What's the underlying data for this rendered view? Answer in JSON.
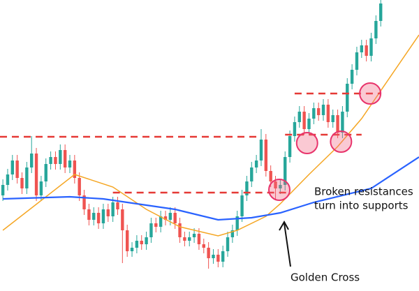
{
  "chart_data": {
    "type": "candlestick",
    "open": [
      137,
      152,
      167,
      187,
      162,
      147,
      177,
      197,
      137,
      157,
      182,
      192,
      182,
      202,
      177,
      187,
      162,
      137,
      117,
      102,
      112,
      97,
      117,
      107,
      127,
      117,
      87,
      57,
      62,
      72,
      67,
      77,
      97,
      92,
      107,
      102,
      112,
      97,
      77,
      72,
      77,
      82,
      67,
      62,
      47,
      52,
      42,
      57,
      77,
      87,
      107,
      137,
      157,
      177,
      187,
      217,
      172,
      157,
      147,
      152,
      192,
      222,
      242,
      257,
      232,
      247,
      262,
      252,
      267,
      242,
      252,
      227,
      257,
      297,
      317,
      342,
      352,
      337,
      362,
      387
    ],
    "high": [
      160,
      175,
      195,
      195,
      170,
      185,
      222,
      205,
      165,
      190,
      200,
      200,
      210,
      210,
      195,
      195,
      170,
      145,
      125,
      120,
      120,
      125,
      125,
      135,
      135,
      125,
      95,
      70,
      80,
      80,
      85,
      105,
      105,
      115,
      115,
      120,
      120,
      105,
      85,
      85,
      90,
      90,
      75,
      70,
      60,
      60,
      65,
      85,
      95,
      115,
      145,
      165,
      185,
      195,
      232,
      225,
      180,
      165,
      160,
      200,
      230,
      250,
      265,
      265,
      255,
      270,
      270,
      275,
      275,
      260,
      260,
      265,
      305,
      325,
      350,
      360,
      360,
      370,
      395,
      417
    ],
    "low": [
      129,
      144,
      159,
      154,
      139,
      139,
      169,
      129,
      129,
      149,
      174,
      174,
      174,
      169,
      169,
      154,
      129,
      109,
      94,
      94,
      89,
      89,
      99,
      99,
      109,
      40,
      49,
      49,
      54,
      59,
      59,
      69,
      84,
      84,
      94,
      94,
      89,
      69,
      64,
      64,
      69,
      59,
      54,
      32,
      39,
      34,
      34,
      49,
      69,
      79,
      99,
      129,
      149,
      169,
      179,
      164,
      149,
      130,
      139,
      144,
      184,
      214,
      234,
      224,
      224,
      239,
      244,
      244,
      234,
      234,
      219,
      219,
      249,
      289,
      309,
      334,
      329,
      329,
      354,
      379
    ],
    "close": [
      152,
      167,
      187,
      162,
      147,
      177,
      197,
      137,
      157,
      182,
      192,
      182,
      202,
      177,
      187,
      162,
      137,
      117,
      102,
      112,
      97,
      117,
      107,
      127,
      117,
      87,
      57,
      62,
      72,
      67,
      77,
      97,
      92,
      107,
      102,
      112,
      97,
      77,
      72,
      77,
      82,
      67,
      62,
      47,
      52,
      42,
      57,
      77,
      87,
      107,
      137,
      157,
      177,
      187,
      217,
      172,
      157,
      147,
      152,
      192,
      222,
      242,
      257,
      232,
      247,
      262,
      252,
      267,
      242,
      252,
      227,
      257,
      297,
      317,
      342,
      352,
      337,
      362,
      387,
      412
    ],
    "up_color": "#26a69a",
    "down_color": "#ef5350",
    "xlim": [
      -0.6,
      87
    ],
    "ylim": [
      0,
      417
    ],
    "lines": [
      {
        "color": "#f5a623",
        "x": [
          0,
          15,
          23,
          30,
          37,
          45,
          49,
          55,
          58,
          64,
          70,
          75,
          79,
          87
        ],
        "values": [
          87,
          167,
          149,
          117,
          92,
          79,
          87,
          107,
          125,
          167,
          207,
          247,
          287,
          367
        ]
      },
      {
        "color": "#2962ff",
        "x": [
          0,
          14,
          21,
          36,
          45,
          52,
          58,
          65,
          77,
          87
        ],
        "values": [
          132,
          135,
          132,
          117,
          102,
          105,
          112,
          127,
          147,
          192
        ]
      }
    ],
    "levels": [
      {
        "value": 221,
        "from": -0.6,
        "to": 54
      },
      {
        "value": 141,
        "from": 23,
        "to": 60
      },
      {
        "value": 283,
        "from": 61,
        "to": 79
      },
      {
        "value": 224,
        "from": 59,
        "to": 75
      }
    ],
    "highlights": [
      {
        "x": 57.8,
        "value": 145
      },
      {
        "x": 63.6,
        "value": 212
      },
      {
        "x": 70.7,
        "value": 214
      },
      {
        "x": 76.8,
        "value": 283
      }
    ],
    "annotations": [
      "Broken resistances",
      "turn into supports",
      "Golden Cross"
    ]
  }
}
